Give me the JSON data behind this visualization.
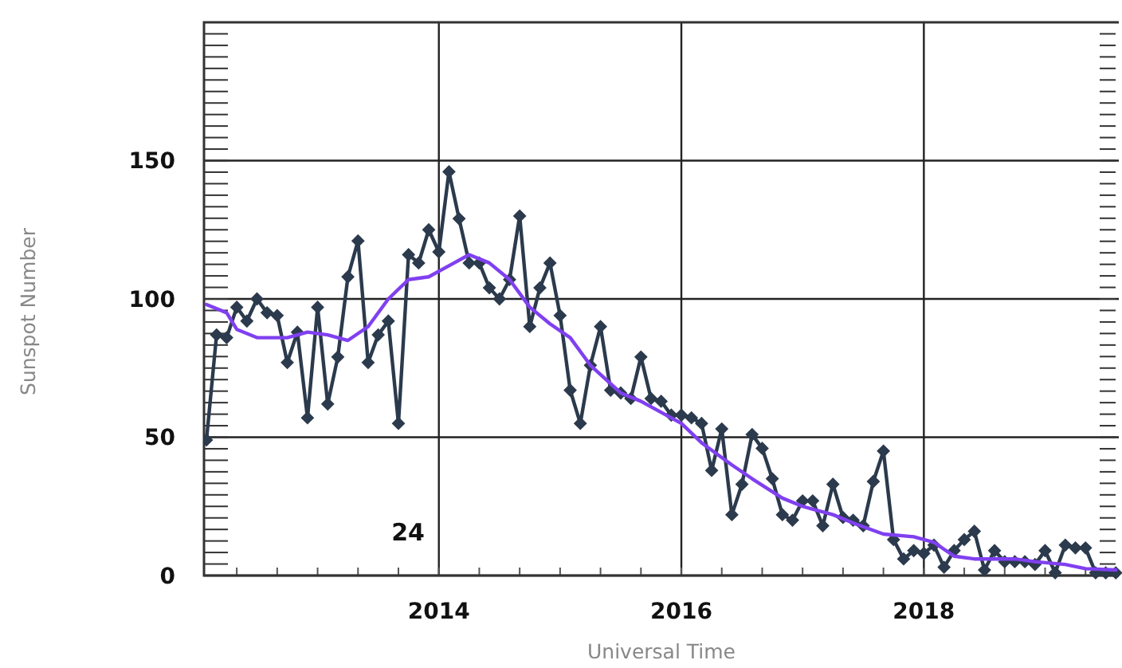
{
  "chart_data": {
    "type": "line",
    "xlabel": "Universal Time",
    "ylabel": "Sunspot Number",
    "xlim": [
      "2012-01-24",
      "2019-08-10"
    ],
    "xticks": [
      {
        "value": "2014",
        "label": "2014"
      },
      {
        "value": "2016",
        "label": "2016"
      },
      {
        "value": "2018",
        "label": "2018"
      }
    ],
    "ylim": [
      0,
      200
    ],
    "yticks": [
      0,
      50,
      100,
      150
    ],
    "grid": true,
    "annotations": [
      "24"
    ],
    "series": [
      {
        "color": "#2b3a4c",
        "marker": "diamond",
        "x": [
          "2012-02",
          "2012-03",
          "2012-04",
          "2012-05",
          "2012-06",
          "2012-07",
          "2012-08",
          "2012-09",
          "2012-10",
          "2012-11",
          "2012-12",
          "2013-01",
          "2013-02",
          "2013-03",
          "2013-04",
          "2013-05",
          "2013-06",
          "2013-07",
          "2013-08",
          "2013-09",
          "2013-10",
          "2013-11",
          "2013-12",
          "2014-01",
          "2014-02",
          "2014-03",
          "2014-04",
          "2014-05",
          "2014-06",
          "2014-07",
          "2014-08",
          "2014-09",
          "2014-10",
          "2014-11",
          "2014-12",
          "2015-01",
          "2015-02",
          "2015-03",
          "2015-04",
          "2015-05",
          "2015-06",
          "2015-07",
          "2015-08",
          "2015-09",
          "2015-10",
          "2015-11",
          "2015-12",
          "2016-01",
          "2016-02",
          "2016-03",
          "2016-04",
          "2016-05",
          "2016-06",
          "2016-07",
          "2016-08",
          "2016-09",
          "2016-10",
          "2016-11",
          "2016-12",
          "2017-01",
          "2017-02",
          "2017-03",
          "2017-04",
          "2017-05",
          "2017-06",
          "2017-07",
          "2017-08",
          "2017-09",
          "2017-10",
          "2017-11",
          "2017-12",
          "2018-01",
          "2018-02",
          "2018-03",
          "2018-04",
          "2018-05",
          "2018-06",
          "2018-07",
          "2018-08",
          "2018-09",
          "2018-10",
          "2018-11",
          "2018-12",
          "2019-01",
          "2019-02",
          "2019-03",
          "2019-04",
          "2019-05",
          "2019-06",
          "2019-07",
          "2019-08"
        ],
        "values": [
          49,
          87,
          86,
          97,
          92,
          100,
          95,
          94,
          77,
          88,
          57,
          97,
          62,
          79,
          108,
          121,
          77,
          87,
          92,
          55,
          116,
          113,
          125,
          117,
          146,
          129,
          113,
          113,
          104,
          100,
          107,
          130,
          90,
          104,
          113,
          94,
          67,
          55,
          76,
          90,
          67,
          66,
          64,
          79,
          64,
          63,
          58,
          58,
          57,
          55,
          38,
          53,
          22,
          33,
          51,
          46,
          35,
          22,
          20,
          27,
          27,
          18,
          33,
          21,
          20,
          18,
          34,
          45,
          13,
          6,
          9,
          8,
          11,
          3,
          9,
          13,
          16,
          2,
          9,
          5,
          5,
          5,
          4,
          9,
          1,
          11,
          10,
          10,
          1,
          1,
          1
        ]
      },
      {
        "color": "#8040f0",
        "marker": "none",
        "x": [
          "2012-02",
          "2012-04",
          "2012-05",
          "2012-07",
          "2012-10",
          "2012-12",
          "2013-02",
          "2013-04",
          "2013-06",
          "2013-08",
          "2013-10",
          "2013-12",
          "2014-02",
          "2014-04",
          "2014-06",
          "2014-08",
          "2014-10",
          "2014-12",
          "2015-02",
          "2015-04",
          "2015-07",
          "2015-09",
          "2016-01",
          "2016-03",
          "2016-06",
          "2016-08",
          "2016-11",
          "2017-01",
          "2017-04",
          "2017-06",
          "2017-09",
          "2017-12",
          "2018-02",
          "2018-04",
          "2018-06",
          "2018-10",
          "2018-12",
          "2019-03",
          "2019-05",
          "2019-08"
        ],
        "values": [
          98,
          95,
          89,
          86,
          86,
          88,
          87,
          85,
          90,
          100,
          107,
          108,
          112,
          116,
          113,
          107,
          97,
          91,
          86,
          76,
          66,
          63,
          55,
          48,
          40,
          35,
          28,
          25,
          22,
          19,
          15,
          14,
          12,
          7,
          6,
          6,
          5,
          4,
          2.5,
          2
        ]
      }
    ]
  }
}
